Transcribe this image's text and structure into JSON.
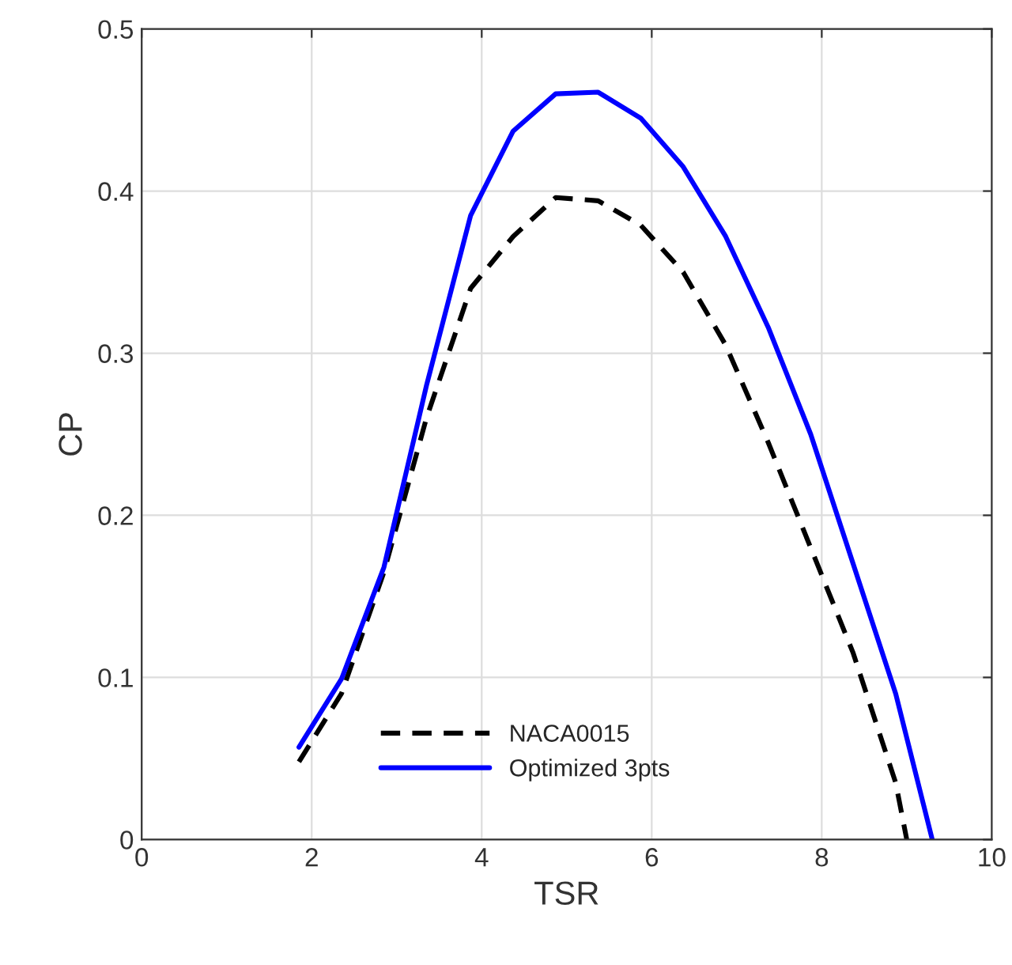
{
  "chart_data": {
    "type": "line",
    "xlabel": "TSR",
    "ylabel": "CP",
    "xlim": [
      0,
      10
    ],
    "ylim": [
      0,
      0.5
    ],
    "xticks": [
      0,
      2,
      4,
      6,
      8,
      10
    ],
    "yticks": [
      0,
      0.1,
      0.2,
      0.3,
      0.4,
      0.5
    ],
    "grid": true,
    "legend": "bottom",
    "marker": "none",
    "series": [
      {
        "name": "NACA0015",
        "color": "#000000",
        "line_style": "dashed",
        "x": [
          1.85,
          2.35,
          2.85,
          3.35,
          3.87,
          4.37,
          4.87,
          5.37,
          5.87,
          6.37,
          6.87,
          7.37,
          7.87,
          8.37,
          8.87,
          9.0
        ],
        "values": [
          0.048,
          0.09,
          0.165,
          0.26,
          0.34,
          0.372,
          0.396,
          0.394,
          0.379,
          0.35,
          0.305,
          0.245,
          0.18,
          0.115,
          0.035,
          0
        ]
      },
      {
        "name": "Optimized 3pts",
        "color": "#0000ff",
        "line_style": "solid",
        "x": [
          1.85,
          2.35,
          2.85,
          3.35,
          3.87,
          4.37,
          4.87,
          5.37,
          5.87,
          6.37,
          6.87,
          7.37,
          7.87,
          8.37,
          8.87,
          9.3
        ],
        "values": [
          0.057,
          0.099,
          0.168,
          0.28,
          0.385,
          0.437,
          0.46,
          0.461,
          0.445,
          0.415,
          0.372,
          0.316,
          0.25,
          0.17,
          0.09,
          0
        ]
      }
    ]
  }
}
